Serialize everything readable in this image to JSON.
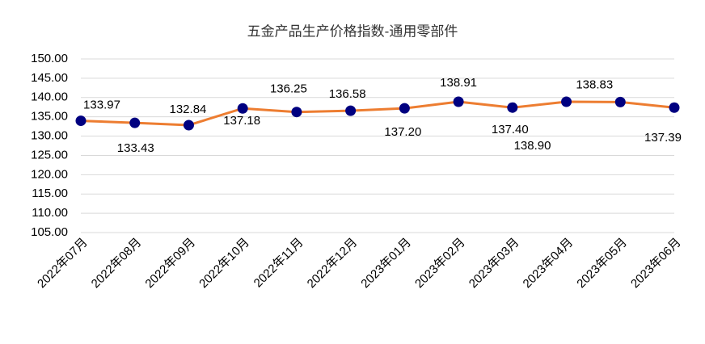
{
  "chart_data": {
    "type": "line",
    "title": "五金产品生产价格指数-通用零部件",
    "categories": [
      "2022年07月",
      "2022年08月",
      "2022年09月",
      "2022年10月",
      "2022年11月",
      "2022年12月",
      "2023年01月",
      "2023年02月",
      "2023年03月",
      "2023年04月",
      "2023年05月",
      "2023年06月"
    ],
    "series": [
      {
        "color": "#ED7D31",
        "marker_color": "#000080",
        "values": [
          133.97,
          133.43,
          132.84,
          137.18,
          136.25,
          136.58,
          137.2,
          138.91,
          137.4,
          138.9,
          138.83,
          137.39
        ],
        "value_labels": [
          "133.97",
          "133.43",
          "132.84",
          "137.18",
          "136.25",
          "136.58",
          "137.20",
          "138.91",
          "137.40",
          "138.90",
          "138.83",
          "137.39"
        ]
      }
    ],
    "ylim": [
      105,
      150
    ],
    "yticks": [
      {
        "value": 105,
        "label": "105.00"
      },
      {
        "value": 110,
        "label": "110.00"
      },
      {
        "value": 115,
        "label": "115.00"
      },
      {
        "value": 120,
        "label": "120.00"
      },
      {
        "value": 125,
        "label": "125.00"
      },
      {
        "value": 130,
        "label": "130.00"
      },
      {
        "value": 135,
        "label": "135.00"
      },
      {
        "value": 140,
        "label": "140.00"
      },
      {
        "value": 145,
        "label": "145.00"
      },
      {
        "value": 150,
        "label": "150.00"
      }
    ],
    "grid": true
  }
}
